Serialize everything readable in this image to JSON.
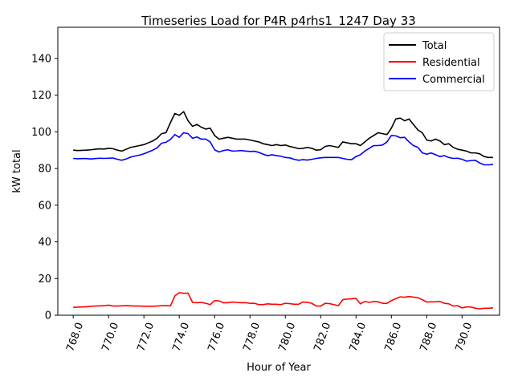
{
  "chart_data": {
    "type": "line",
    "title": "Timeseries Load for P4R p4rhs1_1247  Day 33",
    "xlabel": "Hour of Year",
    "ylabel": "kW total",
    "xlim": [
      767.13,
      792.12
    ],
    "ylim": [
      0,
      157
    ],
    "xticks": [
      768,
      770,
      772,
      774,
      776,
      778,
      780,
      782,
      784,
      786,
      788,
      790
    ],
    "xtick_labels": [
      "768.0",
      "770.0",
      "772.0",
      "774.0",
      "776.0",
      "778.0",
      "780.0",
      "782.0",
      "784.0",
      "786.0",
      "788.0",
      "790.0"
    ],
    "yticks": [
      0,
      20,
      40,
      60,
      80,
      100,
      120,
      140
    ],
    "ytick_labels": [
      "0",
      "20",
      "40",
      "60",
      "80",
      "100",
      "120",
      "140"
    ],
    "grid": false,
    "legend_position": "top-right",
    "x": [
      768.0,
      768.25,
      768.5,
      768.75,
      769.0,
      769.25,
      769.5,
      769.75,
      770.0,
      770.25,
      770.5,
      770.75,
      771.0,
      771.25,
      771.5,
      771.75,
      772.0,
      772.25,
      772.5,
      772.75,
      773.0,
      773.25,
      773.5,
      773.75,
      774.0,
      774.25,
      774.5,
      774.75,
      775.0,
      775.25,
      775.5,
      775.75,
      776.0,
      776.25,
      776.5,
      776.75,
      777.0,
      777.25,
      777.5,
      777.75,
      778.0,
      778.25,
      778.5,
      778.75,
      779.0,
      779.25,
      779.5,
      779.75,
      780.0,
      780.25,
      780.5,
      780.75,
      781.0,
      781.25,
      781.5,
      781.75,
      782.0,
      782.25,
      782.5,
      782.75,
      783.0,
      783.25,
      783.5,
      783.75,
      784.0,
      784.25,
      784.5,
      784.75,
      785.0,
      785.25,
      785.5,
      785.75,
      786.0,
      786.25,
      786.5,
      786.75,
      787.0,
      787.25,
      787.5,
      787.75,
      788.0,
      788.25,
      788.5,
      788.75,
      789.0,
      789.25,
      789.5,
      789.75,
      790.0,
      790.25,
      790.5,
      790.75,
      791.0,
      791.25,
      791.5,
      791.75
    ],
    "series": [
      {
        "name": "Total",
        "color": "#000000",
        "values": [
          90.0,
          89.8,
          89.9,
          90.0,
          90.2,
          90.5,
          90.7,
          90.6,
          91.0,
          90.8,
          90.0,
          89.5,
          90.5,
          91.5,
          92.0,
          92.5,
          93.0,
          94.0,
          95.0,
          96.5,
          99.0,
          99.5,
          105.0,
          110.0,
          109.0,
          111.0,
          106.0,
          103.0,
          104.0,
          102.5,
          101.5,
          102.0,
          98.0,
          96.0,
          96.5,
          97.0,
          96.5,
          96.0,
          96.0,
          96.0,
          95.5,
          95.0,
          94.5,
          93.5,
          93.0,
          92.5,
          93.0,
          92.5,
          92.8,
          92.0,
          91.5,
          90.8,
          91.0,
          91.5,
          91.0,
          90.0,
          90.2,
          92.0,
          92.5,
          92.0,
          91.5,
          94.5,
          94.0,
          93.5,
          93.5,
          92.5,
          94.5,
          96.5,
          98.0,
          99.5,
          99.0,
          98.5,
          102.0,
          107.0,
          107.5,
          106.0,
          107.0,
          104.0,
          101.0,
          99.5,
          95.5,
          95.0,
          96.0,
          95.0,
          93.0,
          93.5,
          91.5,
          90.5,
          90.0,
          89.5,
          88.5,
          88.5,
          88.0,
          86.5,
          86.0,
          86.0
        ]
      },
      {
        "name": "Residential",
        "color": "#ff0000",
        "values": [
          4.3,
          4.4,
          4.5,
          4.6,
          4.9,
          5.0,
          5.1,
          5.2,
          5.5,
          5.0,
          5.0,
          5.1,
          5.2,
          5.1,
          5.0,
          5.0,
          4.9,
          4.9,
          4.9,
          5.0,
          5.2,
          5.2,
          5.1,
          10.5,
          12.3,
          12.0,
          12.0,
          7.0,
          6.8,
          7.0,
          6.5,
          5.8,
          8.0,
          7.8,
          6.8,
          6.8,
          7.2,
          7.0,
          6.8,
          6.8,
          6.5,
          6.5,
          5.8,
          5.8,
          6.2,
          6.0,
          6.0,
          5.8,
          6.5,
          6.3,
          6.0,
          6.0,
          7.2,
          7.0,
          6.5,
          5.0,
          5.0,
          6.5,
          6.3,
          5.8,
          5.2,
          8.5,
          8.8,
          9.0,
          9.2,
          6.2,
          7.5,
          7.0,
          7.5,
          7.3,
          6.5,
          6.5,
          8.0,
          9.0,
          10.0,
          9.8,
          10.2,
          9.9,
          9.5,
          8.5,
          7.2,
          7.3,
          7.3,
          7.5,
          6.5,
          6.2,
          5.0,
          5.2,
          4.0,
          4.5,
          4.5,
          3.8,
          3.5,
          3.8,
          3.8,
          4.0
        ]
      },
      {
        "name": "Commercial",
        "color": "#0000ff",
        "values": [
          85.5,
          85.3,
          85.4,
          85.4,
          85.2,
          85.4,
          85.6,
          85.5,
          85.6,
          85.7,
          85.0,
          84.5,
          85.2,
          86.2,
          86.8,
          87.3,
          88.0,
          89.0,
          90.0,
          91.3,
          93.8,
          94.3,
          95.8,
          98.5,
          97.0,
          99.5,
          99.0,
          96.5,
          97.2,
          96.0,
          96.0,
          94.5,
          90.2,
          89.0,
          89.8,
          90.2,
          89.5,
          89.6,
          89.8,
          89.5,
          89.3,
          89.4,
          88.8,
          87.8,
          87.0,
          87.5,
          87.0,
          86.7,
          86.0,
          85.8,
          85.0,
          84.5,
          84.8,
          84.6,
          85.0,
          85.5,
          85.8,
          86.0,
          86.0,
          86.0,
          86.0,
          85.5,
          85.0,
          84.8,
          86.5,
          87.5,
          89.5,
          91.0,
          92.5,
          92.5,
          92.8,
          94.5,
          98.0,
          97.8,
          96.8,
          97.0,
          94.5,
          92.5,
          91.5,
          88.5,
          87.8,
          88.5,
          87.5,
          86.5,
          87.0,
          86.0,
          85.5,
          85.6,
          85.0,
          84.0,
          84.3,
          84.5,
          83.0,
          82.0,
          82.0,
          82.2
        ]
      }
    ]
  }
}
